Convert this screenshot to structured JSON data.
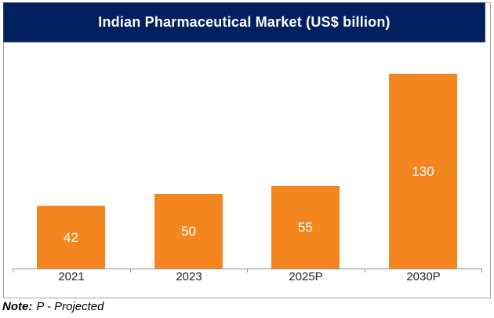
{
  "title": "Indian Pharmaceutical Market (US$ billion)",
  "note": {
    "label": "Note:",
    "text": "P - Projected"
  },
  "colors": {
    "title_band_bg": "#02205F",
    "title_band_border": "#2F4161",
    "title_text": "#FFFFFF",
    "bar_fill": "#F4861F",
    "bar_label": "#FFFFFF",
    "axis_line": "#8F8F8F",
    "frame_border": "#A3A3A3",
    "category_label": "#222222"
  },
  "chart_data": {
    "type": "bar",
    "title": "Indian Pharmaceutical Market (US$ billion)",
    "categories": [
      "2021",
      "2023",
      "2025P",
      "2030P"
    ],
    "values": [
      42,
      50,
      55,
      130
    ],
    "xlabel": "",
    "ylabel": "",
    "ylim": [
      0,
      150
    ],
    "grid": false,
    "legend": "none",
    "y_axis_visible": false,
    "data_label_position": "inside-center",
    "bar_color": "#F4861F",
    "annotation": "Note: P - Projected"
  }
}
